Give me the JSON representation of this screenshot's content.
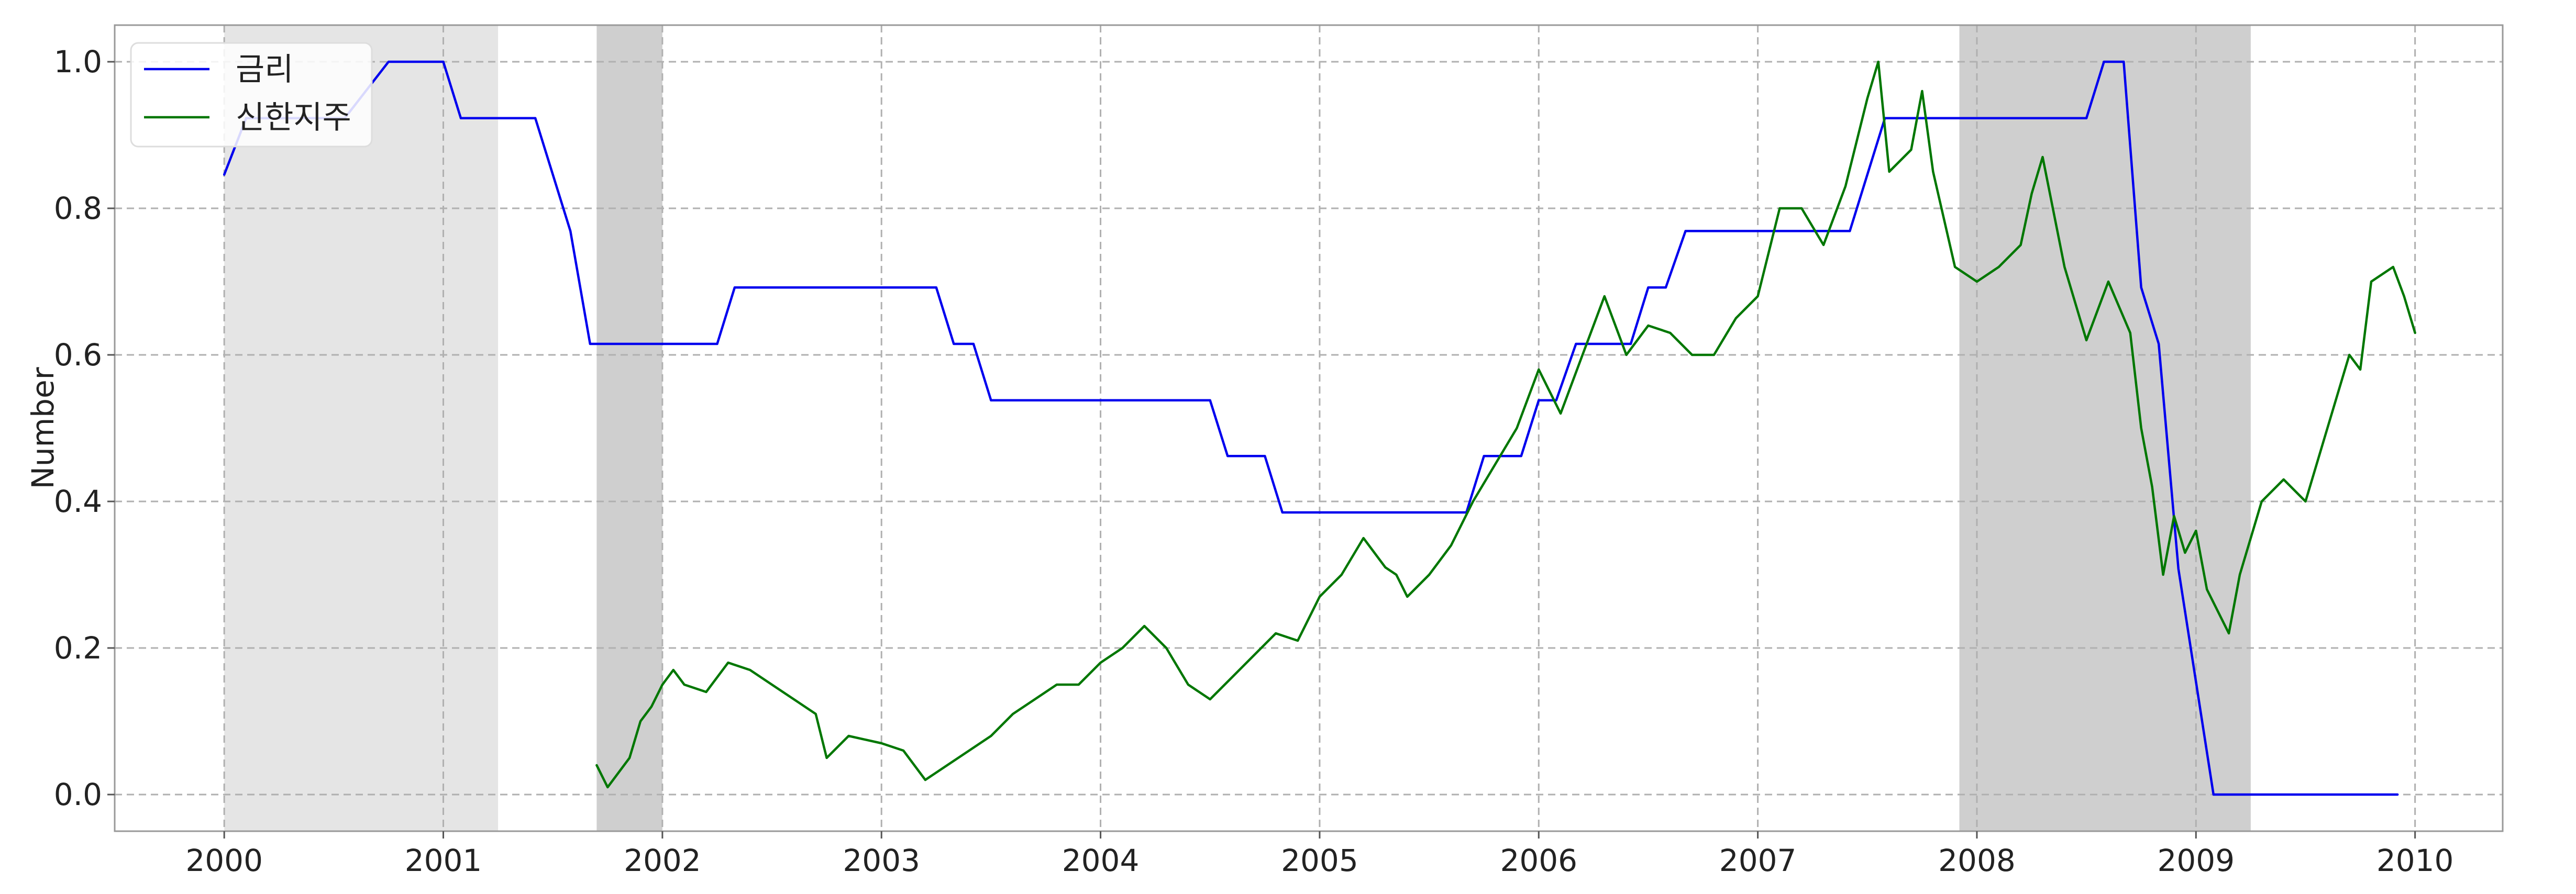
{
  "chart_data": {
    "type": "line",
    "title": "",
    "xlabel": "",
    "ylabel": "Number",
    "xlim": [
      1999.5,
      2010.4
    ],
    "ylim": [
      -0.05,
      1.05
    ],
    "grid": true,
    "legend_position": "top-left",
    "x_ticks": [
      2000,
      2001,
      2002,
      2003,
      2004,
      2005,
      2006,
      2007,
      2008,
      2009,
      2010
    ],
    "x_tick_labels": [
      "2000",
      "2001",
      "2002",
      "2003",
      "2004",
      "2005",
      "2006",
      "2007",
      "2008",
      "2009",
      "2010"
    ],
    "y_ticks": [
      0.0,
      0.2,
      0.4,
      0.6,
      0.8,
      1.0
    ],
    "y_tick_labels": [
      "0.0",
      "0.2",
      "0.4",
      "0.6",
      "0.8",
      "1.0"
    ],
    "shaded_regions": [
      {
        "start": 2000.0,
        "end": 2001.25,
        "color": "#e5e5e5"
      },
      {
        "start": 2001.7,
        "end": 2002.0,
        "color": "#cfcfcf"
      },
      {
        "start": 2007.92,
        "end": 2009.25,
        "color": "#cfcfcf"
      }
    ],
    "series": [
      {
        "name": "금리",
        "color": "#0000ee",
        "points": [
          [
            2000.0,
            0.846
          ],
          [
            2000.1,
            0.923
          ],
          [
            2000.25,
            0.923
          ],
          [
            2000.35,
            0.923
          ],
          [
            2000.55,
            0.923
          ],
          [
            2000.75,
            1.0
          ],
          [
            2001.0,
            1.0
          ],
          [
            2001.08,
            0.923
          ],
          [
            2001.42,
            0.923
          ],
          [
            2001.58,
            0.769
          ],
          [
            2001.67,
            0.615
          ],
          [
            2002.25,
            0.615
          ],
          [
            2002.33,
            0.692
          ],
          [
            2003.25,
            0.692
          ],
          [
            2003.33,
            0.615
          ],
          [
            2003.42,
            0.615
          ],
          [
            2003.5,
            0.538
          ],
          [
            2004.5,
            0.538
          ],
          [
            2004.58,
            0.462
          ],
          [
            2004.75,
            0.462
          ],
          [
            2004.83,
            0.385
          ],
          [
            2005.67,
            0.385
          ],
          [
            2005.75,
            0.462
          ],
          [
            2005.92,
            0.462
          ],
          [
            2006.0,
            0.538
          ],
          [
            2006.08,
            0.538
          ],
          [
            2006.17,
            0.615
          ],
          [
            2006.42,
            0.615
          ],
          [
            2006.5,
            0.692
          ],
          [
            2006.58,
            0.692
          ],
          [
            2006.67,
            0.769
          ],
          [
            2007.42,
            0.769
          ],
          [
            2007.5,
            0.846
          ],
          [
            2007.58,
            0.923
          ],
          [
            2008.5,
            0.923
          ],
          [
            2008.58,
            1.0
          ],
          [
            2008.67,
            1.0
          ],
          [
            2008.75,
            0.692
          ],
          [
            2008.83,
            0.615
          ],
          [
            2008.92,
            0.308
          ],
          [
            2009.08,
            0.0
          ],
          [
            2009.92,
            0.0
          ]
        ]
      },
      {
        "name": "신한지주",
        "color": "#007700",
        "points": [
          [
            2001.7,
            0.04
          ],
          [
            2001.75,
            0.01
          ],
          [
            2001.8,
            0.03
          ],
          [
            2001.85,
            0.05
          ],
          [
            2001.9,
            0.1
          ],
          [
            2001.95,
            0.12
          ],
          [
            2002.0,
            0.15
          ],
          [
            2002.05,
            0.17
          ],
          [
            2002.1,
            0.15
          ],
          [
            2002.2,
            0.14
          ],
          [
            2002.3,
            0.18
          ],
          [
            2002.4,
            0.17
          ],
          [
            2002.5,
            0.15
          ],
          [
            2002.6,
            0.13
          ],
          [
            2002.7,
            0.11
          ],
          [
            2002.75,
            0.05
          ],
          [
            2002.85,
            0.08
          ],
          [
            2003.0,
            0.07
          ],
          [
            2003.1,
            0.06
          ],
          [
            2003.2,
            0.02
          ],
          [
            2003.3,
            0.04
          ],
          [
            2003.4,
            0.06
          ],
          [
            2003.5,
            0.08
          ],
          [
            2003.6,
            0.11
          ],
          [
            2003.7,
            0.13
          ],
          [
            2003.8,
            0.15
          ],
          [
            2003.9,
            0.15
          ],
          [
            2004.0,
            0.18
          ],
          [
            2004.1,
            0.2
          ],
          [
            2004.2,
            0.23
          ],
          [
            2004.3,
            0.2
          ],
          [
            2004.4,
            0.15
          ],
          [
            2004.5,
            0.13
          ],
          [
            2004.6,
            0.16
          ],
          [
            2004.7,
            0.19
          ],
          [
            2004.8,
            0.22
          ],
          [
            2004.9,
            0.21
          ],
          [
            2005.0,
            0.27
          ],
          [
            2005.1,
            0.3
          ],
          [
            2005.2,
            0.35
          ],
          [
            2005.3,
            0.31
          ],
          [
            2005.35,
            0.3
          ],
          [
            2005.4,
            0.27
          ],
          [
            2005.5,
            0.3
          ],
          [
            2005.6,
            0.34
          ],
          [
            2005.7,
            0.4
          ],
          [
            2005.8,
            0.45
          ],
          [
            2005.9,
            0.5
          ],
          [
            2006.0,
            0.58
          ],
          [
            2006.05,
            0.55
          ],
          [
            2006.1,
            0.52
          ],
          [
            2006.2,
            0.6
          ],
          [
            2006.3,
            0.68
          ],
          [
            2006.4,
            0.6
          ],
          [
            2006.5,
            0.64
          ],
          [
            2006.6,
            0.63
          ],
          [
            2006.7,
            0.6
          ],
          [
            2006.8,
            0.6
          ],
          [
            2006.9,
            0.65
          ],
          [
            2007.0,
            0.68
          ],
          [
            2007.1,
            0.8
          ],
          [
            2007.2,
            0.8
          ],
          [
            2007.3,
            0.75
          ],
          [
            2007.4,
            0.83
          ],
          [
            2007.5,
            0.95
          ],
          [
            2007.55,
            1.0
          ],
          [
            2007.6,
            0.85
          ],
          [
            2007.7,
            0.88
          ],
          [
            2007.75,
            0.96
          ],
          [
            2007.8,
            0.85
          ],
          [
            2007.9,
            0.72
          ],
          [
            2008.0,
            0.7
          ],
          [
            2008.1,
            0.72
          ],
          [
            2008.2,
            0.75
          ],
          [
            2008.25,
            0.82
          ],
          [
            2008.3,
            0.87
          ],
          [
            2008.4,
            0.72
          ],
          [
            2008.5,
            0.62
          ],
          [
            2008.6,
            0.7
          ],
          [
            2008.7,
            0.63
          ],
          [
            2008.75,
            0.5
          ],
          [
            2008.8,
            0.42
          ],
          [
            2008.85,
            0.3
          ],
          [
            2008.9,
            0.38
          ],
          [
            2008.95,
            0.33
          ],
          [
            2009.0,
            0.36
          ],
          [
            2009.05,
            0.28
          ],
          [
            2009.15,
            0.22
          ],
          [
            2009.2,
            0.3
          ],
          [
            2009.3,
            0.4
          ],
          [
            2009.4,
            0.43
          ],
          [
            2009.5,
            0.4
          ],
          [
            2009.6,
            0.5
          ],
          [
            2009.7,
            0.6
          ],
          [
            2009.75,
            0.58
          ],
          [
            2009.8,
            0.7
          ],
          [
            2009.9,
            0.72
          ],
          [
            2009.95,
            0.68
          ],
          [
            2010.0,
            0.63
          ]
        ]
      }
    ]
  }
}
